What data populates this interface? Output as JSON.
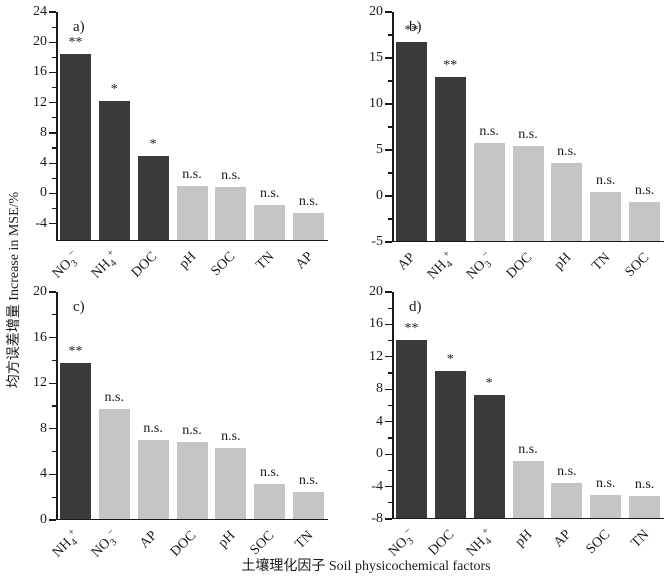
{
  "figure": {
    "ylabel": "均方误差增量 Increase in MSE/%",
    "xlabel": "土壤理化因子 Soil physicochemical factors"
  },
  "colors": {
    "bar_dark": "#3c393b",
    "bar_light": "#c6c4c5",
    "axis": "#1a1a1a",
    "background": "#ffffff"
  },
  "chart_data": {
    "type": "bar",
    "title": "",
    "ylabel": "均方误差增量 Increase in MSE/%",
    "xlabel": "土壤理化因子 Soil physicochemical factors",
    "grid": false,
    "legend": "none",
    "panels": [
      {
        "panel_label": "a)",
        "ylim": [
          -6.3,
          24
        ],
        "yticks": [
          -4,
          0,
          4,
          8,
          12,
          16,
          20,
          24
        ],
        "categories": [
          {
            "base": "NO",
            "sub": "3",
            "sup": "−"
          },
          {
            "base": "NH",
            "sub": "4",
            "sup": "+"
          },
          {
            "base": "DOC"
          },
          {
            "base": "pH"
          },
          {
            "base": "SOC"
          },
          {
            "base": "TN"
          },
          {
            "base": "AP"
          }
        ],
        "values": [
          18.5,
          12.2,
          4.9,
          1.0,
          0.8,
          -1.5,
          -2.6
        ],
        "significance": [
          "**",
          "*",
          "*",
          "n.s.",
          "n.s.",
          "n.s.",
          "n.s."
        ],
        "bar_style": [
          "dark",
          "dark",
          "dark",
          "light",
          "light",
          "light",
          "light"
        ]
      },
      {
        "panel_label": "b)",
        "ylim": [
          -5,
          20
        ],
        "yticks": [
          -5,
          0,
          5,
          10,
          15,
          20
        ],
        "categories": [
          {
            "base": "AP"
          },
          {
            "base": "NH",
            "sub": "4",
            "sup": "+"
          },
          {
            "base": "NO",
            "sub": "3",
            "sup": "−"
          },
          {
            "base": "DOC"
          },
          {
            "base": "pH"
          },
          {
            "base": "TN"
          },
          {
            "base": "SOC"
          }
        ],
        "values": [
          16.7,
          12.9,
          5.8,
          5.4,
          3.6,
          0.4,
          -0.6
        ],
        "significance": [
          "**",
          "**",
          "n.s.",
          "n.s.",
          "n.s.",
          "n.s.",
          "n.s."
        ],
        "bar_style": [
          "dark",
          "dark",
          "light",
          "light",
          "light",
          "light",
          "light"
        ]
      },
      {
        "panel_label": "c)",
        "ylim": [
          0,
          20
        ],
        "yticks": [
          0,
          4,
          8,
          12,
          16,
          20
        ],
        "categories": [
          {
            "base": "NH",
            "sub": "4",
            "sup": "+"
          },
          {
            "base": "NO",
            "sub": "3",
            "sup": "−"
          },
          {
            "base": "AP"
          },
          {
            "base": "DOC"
          },
          {
            "base": "pH"
          },
          {
            "base": "SOC"
          },
          {
            "base": "TN"
          }
        ],
        "values": [
          13.8,
          9.7,
          7.0,
          6.8,
          6.3,
          3.2,
          2.5
        ],
        "significance": [
          "**",
          "n.s.",
          "n.s.",
          "n.s.",
          "n.s.",
          "n.s.",
          "n.s."
        ],
        "bar_style": [
          "dark",
          "light",
          "light",
          "light",
          "light",
          "light",
          "light"
        ]
      },
      {
        "panel_label": "d)",
        "ylim": [
          -8,
          20
        ],
        "yticks": [
          -8,
          -4,
          0,
          4,
          8,
          12,
          16,
          20
        ],
        "categories": [
          {
            "base": "NO",
            "sub": "3",
            "sup": "−"
          },
          {
            "base": "DOC"
          },
          {
            "base": "NH",
            "sub": "4",
            "sup": "+"
          },
          {
            "base": "pH"
          },
          {
            "base": "AP"
          },
          {
            "base": "SOC"
          },
          {
            "base": "TN"
          }
        ],
        "values": [
          14.1,
          10.2,
          7.3,
          -0.9,
          -3.5,
          -5.1,
          -5.2
        ],
        "significance": [
          "**",
          "*",
          "*",
          "n.s.",
          "n.s.",
          "n.s.",
          "n.s."
        ],
        "bar_style": [
          "dark",
          "dark",
          "dark",
          "light",
          "light",
          "light",
          "light"
        ]
      }
    ]
  }
}
